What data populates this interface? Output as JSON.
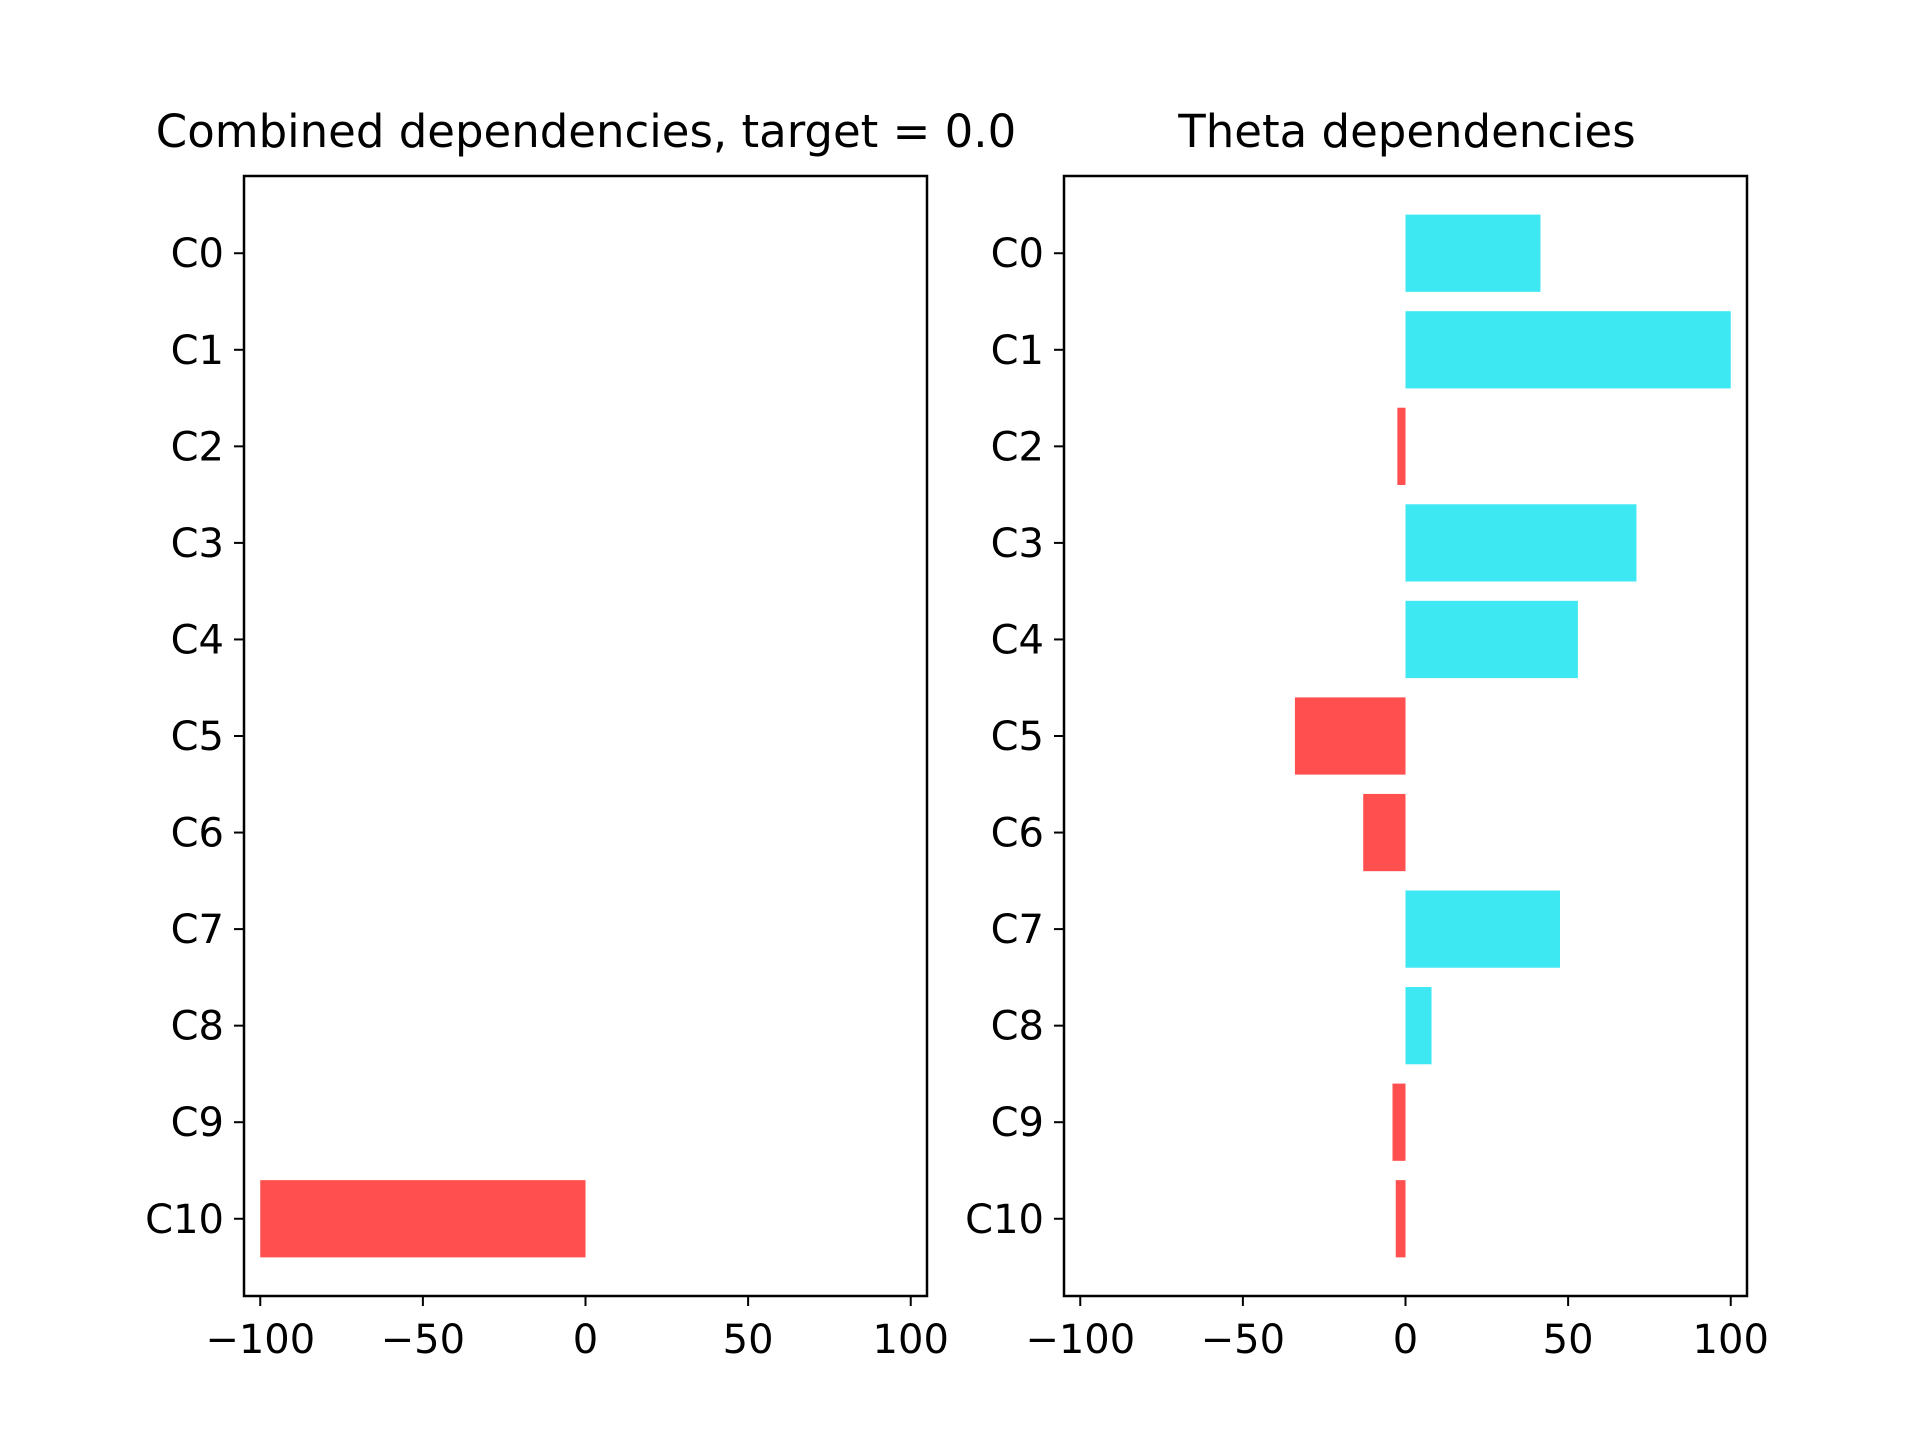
{
  "colors": {
    "positive": "#3de8f3",
    "negative": "#ff4f4f"
  },
  "chart_data": [
    {
      "type": "bar",
      "orientation": "horizontal",
      "title": "Combined dependencies, target = 0.0",
      "categories": [
        "C0",
        "C1",
        "C2",
        "C3",
        "C4",
        "C5",
        "C6",
        "C7",
        "C8",
        "C9",
        "C10"
      ],
      "values": [
        0,
        0,
        0,
        0,
        0,
        0,
        0,
        0,
        0,
        0,
        -100
      ],
      "xticks": [
        -100,
        -50,
        0,
        50,
        100
      ],
      "xtick_labels": [
        "−100",
        "−50",
        "0",
        "50",
        "100"
      ],
      "xlim": [
        -105,
        105
      ],
      "xlabel": "",
      "ylabel": "",
      "grid": false
    },
    {
      "type": "bar",
      "orientation": "horizontal",
      "title": "Theta dependencies",
      "categories": [
        "C0",
        "C1",
        "C2",
        "C3",
        "C4",
        "C5",
        "C6",
        "C7",
        "C8",
        "C9",
        "C10"
      ],
      "values": [
        41.5,
        100,
        -2.5,
        71,
        53,
        -34,
        -13,
        47.5,
        8,
        -4,
        -3
      ],
      "xticks": [
        -100,
        -50,
        0,
        50,
        100
      ],
      "xtick_labels": [
        "−100",
        "−50",
        "0",
        "50",
        "100"
      ],
      "xlim": [
        -105,
        105
      ],
      "xlabel": "",
      "ylabel": "",
      "grid": false
    }
  ]
}
